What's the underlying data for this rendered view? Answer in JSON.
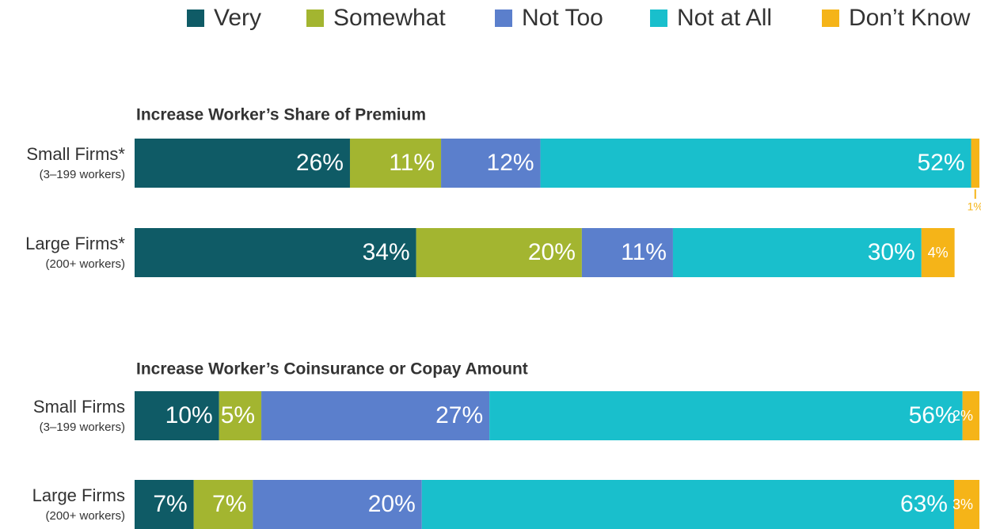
{
  "chart_data": [
    {
      "type": "bar",
      "stacked": true,
      "orientation": "horizontal",
      "title": "Increase Worker’s Share of Premium",
      "categories": [
        "Small Firms*",
        "Large Firms*"
      ],
      "category_notes": [
        "(3–199 workers)",
        "(200+ workers)"
      ],
      "xlim": [
        0,
        102
      ],
      "series": [
        {
          "name": "Very",
          "color": "#0f5b66",
          "values": [
            26,
            34
          ],
          "value_labels": [
            "26%",
            "34%"
          ]
        },
        {
          "name": "Somewhat",
          "color": "#a3b530",
          "values": [
            11,
            20
          ],
          "value_labels": [
            "11%",
            "20%"
          ]
        },
        {
          "name": "Not Too",
          "color": "#5b7fcc",
          "values": [
            12,
            11
          ],
          "value_labels": [
            "12%",
            "11%"
          ]
        },
        {
          "name": "Not at All",
          "color": "#19bfcc",
          "values": [
            52,
            30
          ],
          "value_labels": [
            "52%",
            "30%"
          ]
        },
        {
          "name": "Don’t Know",
          "color": "#f5b418",
          "values": [
            1,
            4
          ],
          "value_labels": [
            "1%",
            "4%"
          ]
        }
      ]
    },
    {
      "type": "bar",
      "stacked": true,
      "orientation": "horizontal",
      "title": "Increase Worker’s Coinsurance or Copay Amount",
      "categories": [
        "Small Firms",
        "Large Firms"
      ],
      "category_notes": [
        "(3–199 workers)",
        "(200+ workers)"
      ],
      "xlim": [
        0,
        100
      ],
      "series": [
        {
          "values": [
            10,
            7
          ],
          "value_labels": [
            "10%",
            "7%"
          ]
        },
        {
          "values": [
            5,
            7
          ],
          "value_labels": [
            "5%",
            "7%"
          ]
        },
        {
          "values": [
            27,
            20
          ],
          "value_labels": [
            "27%",
            "20%"
          ]
        },
        {
          "values": [
            56,
            63
          ],
          "value_labels": [
            "56%",
            "63%"
          ]
        },
        {
          "values": [
            2,
            3
          ],
          "value_labels": [
            "2%",
            "3%"
          ]
        }
      ]
    }
  ]
}
